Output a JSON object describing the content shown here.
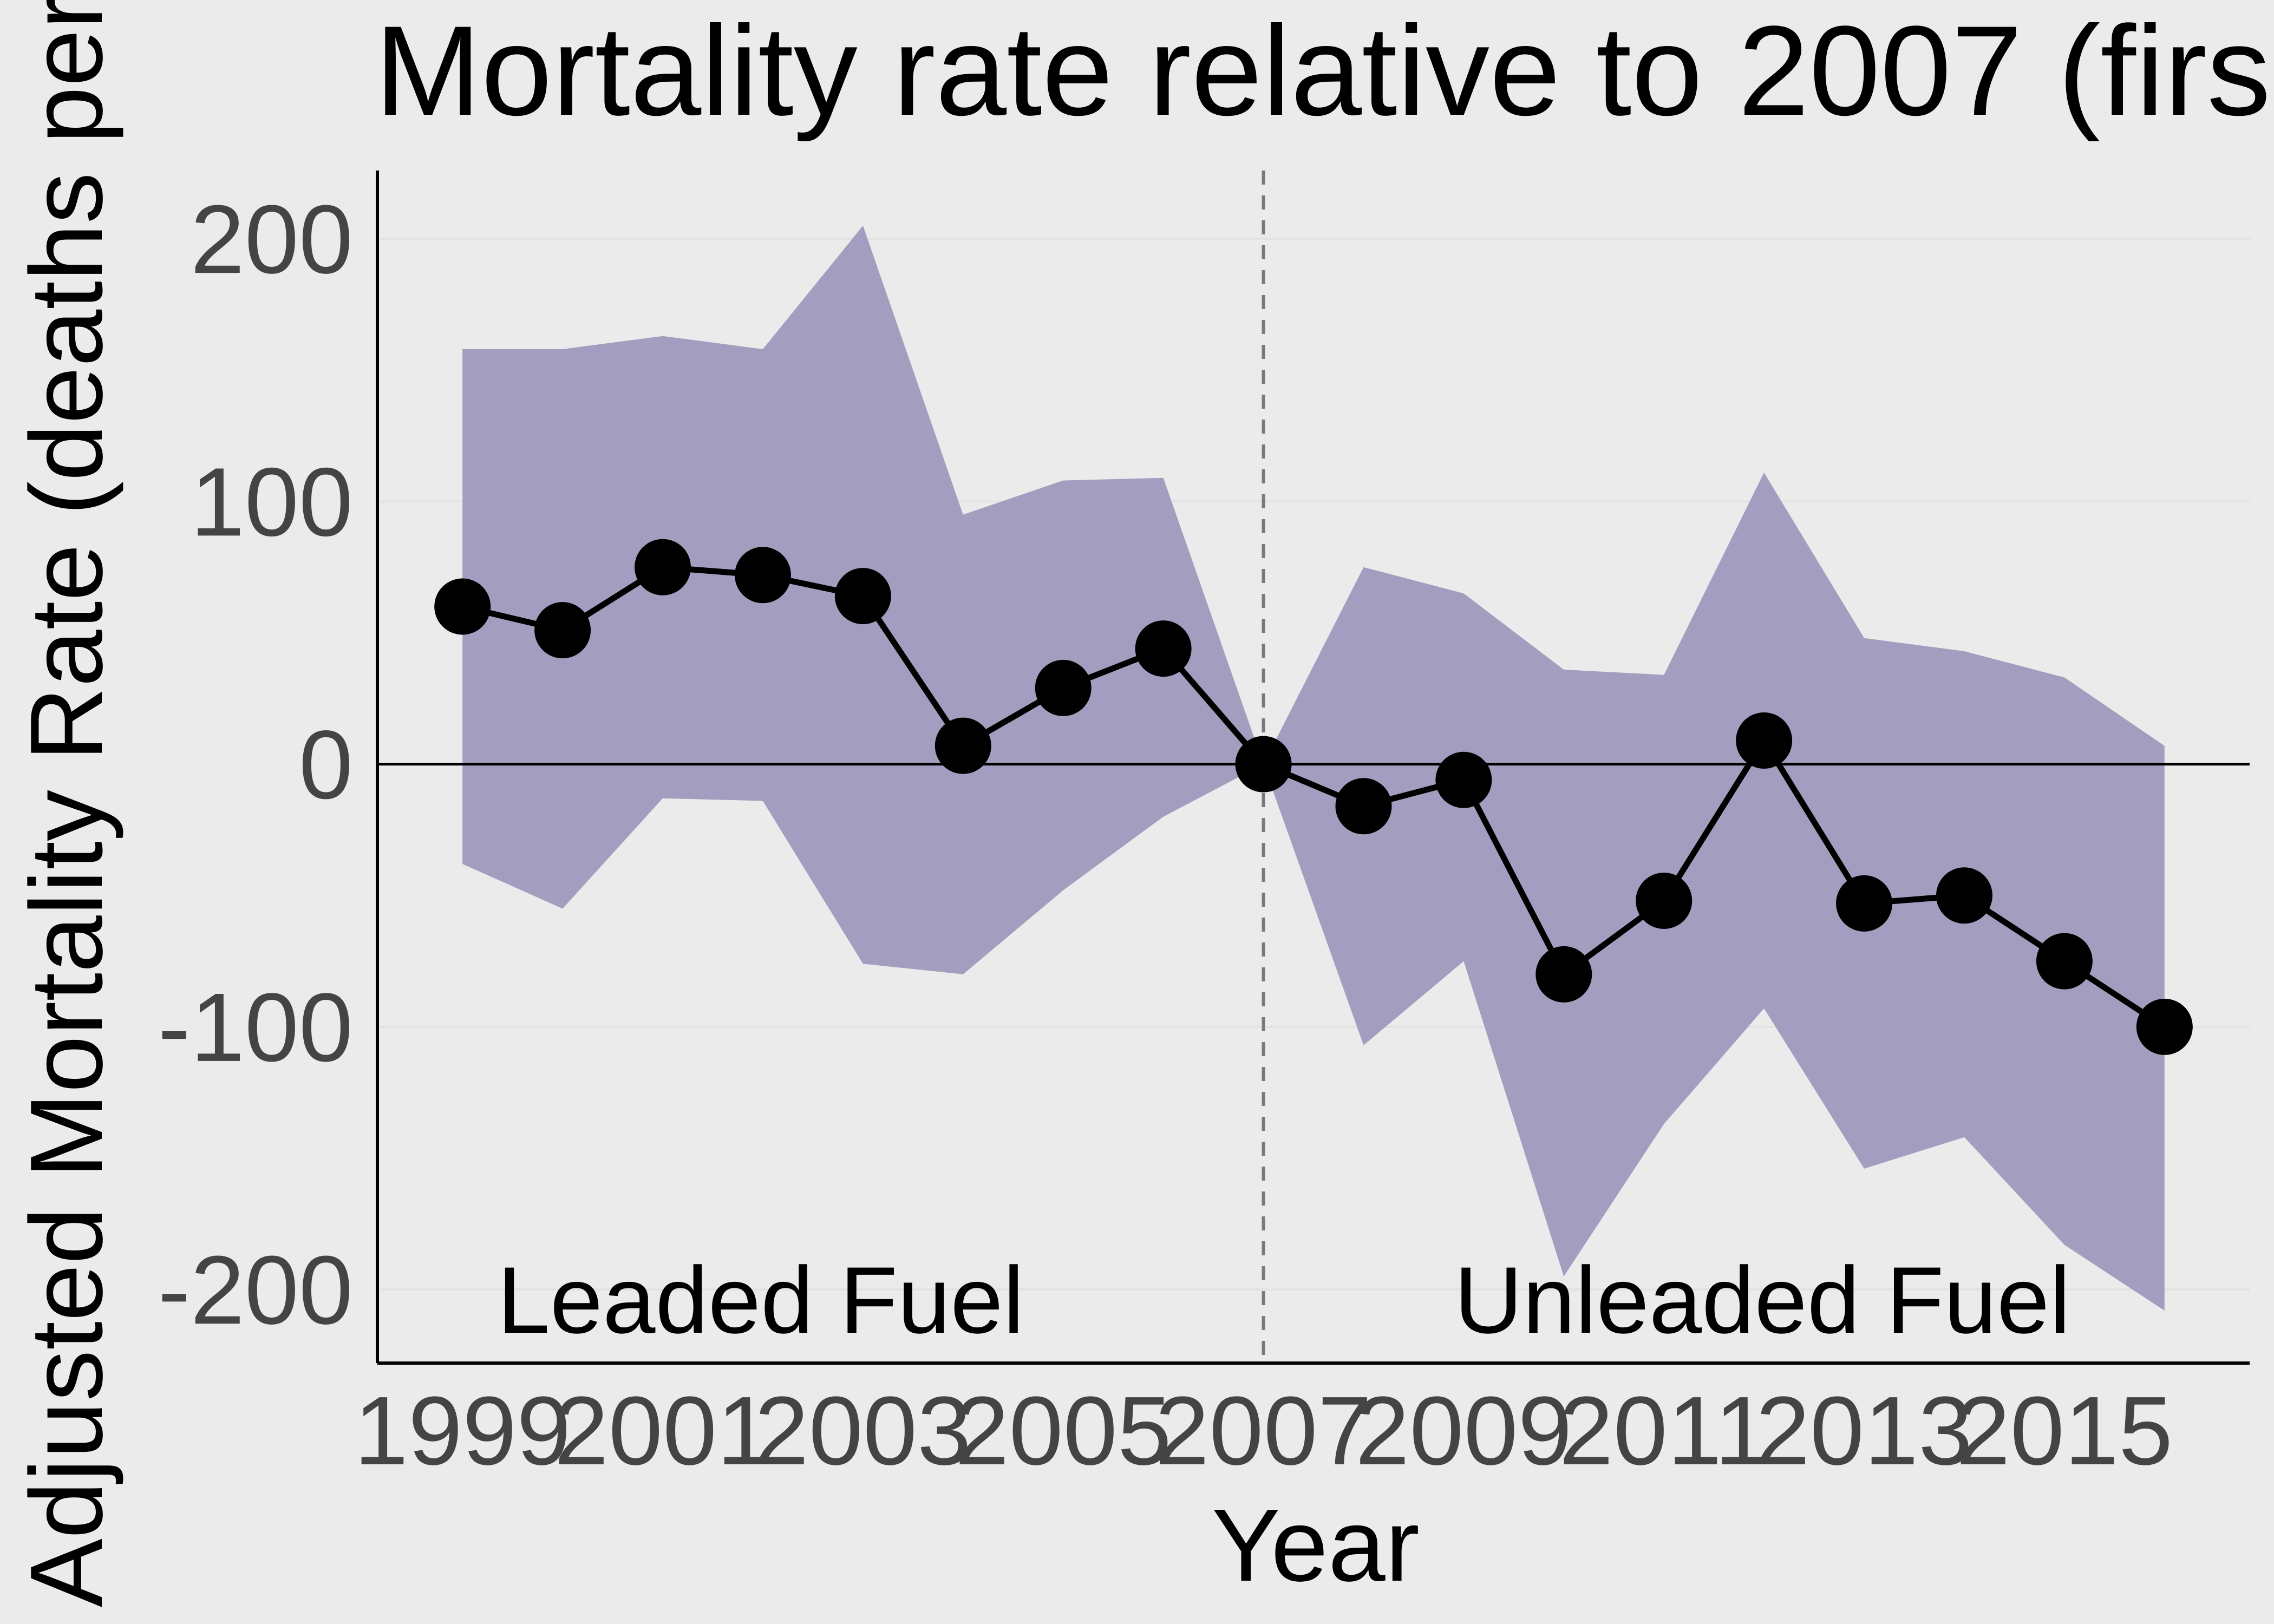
{
  "chart_data": {
    "type": "line",
    "title": "Mortality rate relative to 2007 (firs",
    "xlabel": "Year",
    "ylabel": "Adjusted Mortality Rate (deaths per",
    "x": [
      1999,
      2000,
      2001,
      2002,
      2003,
      2004,
      2005,
      2006,
      2007,
      2008,
      2009,
      2010,
      2011,
      2012,
      2013,
      2014,
      2015,
      2016
    ],
    "series": [
      {
        "values": [
          60,
          51,
          75,
          72,
          64,
          7,
          29,
          44,
          0,
          -16,
          -6,
          -80,
          -52,
          9,
          -53,
          -50,
          -75,
          -100
        ]
      }
    ],
    "ci_upper": [
      158,
      158,
      163,
      158,
      205,
      95,
      108,
      109,
      null,
      75,
      65,
      36,
      34,
      111,
      48,
      43,
      33,
      7
    ],
    "ci_lower": [
      -38,
      -55,
      -13,
      -14,
      -76,
      -80,
      -48,
      -20,
      null,
      -107,
      -75,
      -195,
      -137,
      -93,
      -154,
      -142,
      -183,
      -208
    ],
    "ci_shared_point": [
      2007,
      0
    ],
    "xticks": [
      "1999",
      "2001",
      "2003",
      "2005",
      "2007",
      "2009",
      "2011",
      "2013",
      "2015"
    ],
    "yticks": [
      "200",
      "100",
      "0",
      "-100",
      "-200"
    ],
    "xlim": [
      1998.15,
      2016.85
    ],
    "ylim": [
      -228,
      226
    ],
    "reference_line_x": 2007,
    "reference_line_y": 0,
    "annotations": [
      "Leaded Fuel",
      "Unleaded Fuel"
    ],
    "colors": {
      "ci_band": "#a39ebf",
      "line": "#000000",
      "background": "#ebebeb",
      "vline": "#7a7a7a"
    },
    "grid": true,
    "legend": "none"
  }
}
